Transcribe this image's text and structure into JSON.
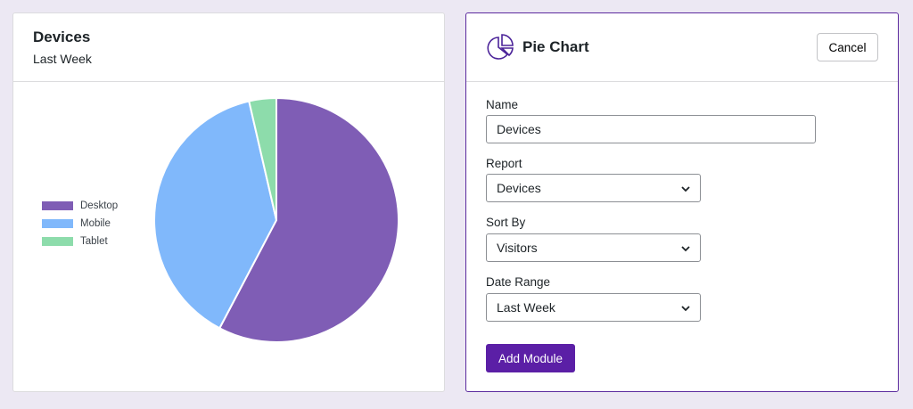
{
  "widget": {
    "title": "Devices",
    "subtitle": "Last Week"
  },
  "chart_data": {
    "type": "pie",
    "categories": [
      "Desktop",
      "Mobile",
      "Tablet"
    ],
    "values": [
      57.7,
      38.7,
      3.6
    ],
    "colors": [
      "#7f5db5",
      "#80b8fb",
      "#8ddcab"
    ],
    "legend_placement": "left"
  },
  "form": {
    "title": "Pie Chart",
    "icon": "pie-chart-icon",
    "cancel_label": "Cancel",
    "name_label": "Name",
    "name_value": "Devices",
    "report_label": "Report",
    "report_value": "Devices",
    "sort_label": "Sort By",
    "sort_value": "Visitors",
    "date_label": "Date Range",
    "date_value": "Last Week",
    "submit_label": "Add Module",
    "accent": "#5b1fa6"
  }
}
